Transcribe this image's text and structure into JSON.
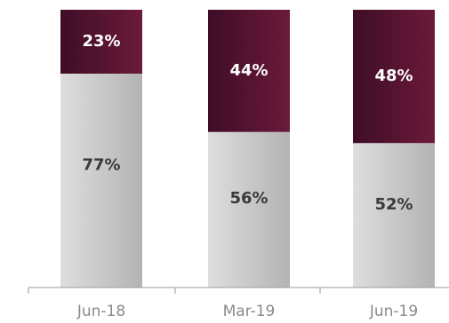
{
  "chart_data": {
    "type": "bar",
    "stacked": true,
    "normalized": true,
    "categories": [
      "Jun-18",
      "Mar-19",
      "Jun-19"
    ],
    "series": [
      {
        "values": [
          77,
          56,
          52
        ],
        "labels": [
          "77%",
          "56%",
          "52%"
        ],
        "color": "#c8c8c8"
      },
      {
        "values": [
          23,
          44,
          48
        ],
        "labels": [
          "23%",
          "44%",
          "48%"
        ],
        "color": "#5a1630"
      }
    ],
    "ylim": [
      0,
      100
    ],
    "grid": false,
    "legend": "none"
  }
}
